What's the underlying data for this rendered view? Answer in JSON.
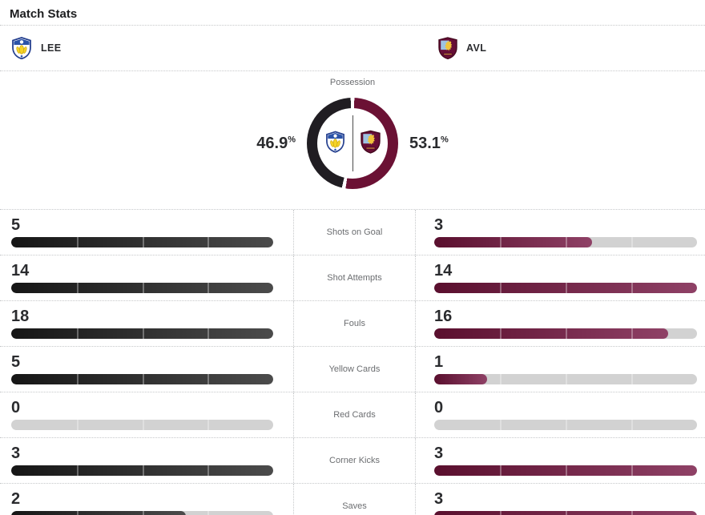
{
  "page": {
    "title": "Match Stats"
  },
  "teams": {
    "home": {
      "abbr": "LEE",
      "crest_icon": "leeds-united-crest",
      "accent_color": "#1f1c21"
    },
    "away": {
      "abbr": "AVL",
      "crest_icon": "aston-villa-crest",
      "accent_color": "#6b1134"
    }
  },
  "possession": {
    "label": "Possession",
    "home_pct": "46.9",
    "away_pct": "53.1",
    "pct_symbol": "%"
  },
  "colors": {
    "donut_home": "#201d22",
    "donut_away": "#6b1134",
    "home_bar_start": "#161616",
    "home_bar_end": "#4b4b4b",
    "away_bar_start": "#5a0f2e",
    "away_bar_end": "#8f4166",
    "bar_track": "#d2d2d2",
    "label_gray": "#6b6d70",
    "text_dark": "#2a2b2e"
  },
  "stats": {
    "rows": [
      {
        "label": "Shots on Goal",
        "home": "5",
        "away": "3"
      },
      {
        "label": "Shot Attempts",
        "home": "14",
        "away": "14"
      },
      {
        "label": "Fouls",
        "home": "18",
        "away": "16"
      },
      {
        "label": "Yellow Cards",
        "home": "5",
        "away": "1"
      },
      {
        "label": "Red Cards",
        "home": "0",
        "away": "0"
      },
      {
        "label": "Corner Kicks",
        "home": "3",
        "away": "3"
      },
      {
        "label": "Saves",
        "home": "2",
        "away": "3"
      }
    ]
  },
  "chart_data": [
    {
      "type": "pie",
      "title": "Possession",
      "labels": [
        "LEE",
        "AVL"
      ],
      "values": [
        46.9,
        53.1
      ],
      "unit": "%",
      "colors": [
        "#201d22",
        "#6b1134"
      ],
      "layout": "donut, LEE left half (black), AVL right half (claret), white gaps at 12 and ~6 o'clock, team crests and vertical divider in hole"
    },
    {
      "type": "bar",
      "title": "Match Stats",
      "categories": [
        "Shots on Goal",
        "Shot Attempts",
        "Fouls",
        "Yellow Cards",
        "Red Cards",
        "Corner Kicks",
        "Saves"
      ],
      "series": [
        {
          "name": "LEE",
          "values": [
            5,
            14,
            18,
            5,
            0,
            3,
            2
          ]
        },
        {
          "name": "AVL",
          "values": [
            3,
            14,
            16,
            1,
            0,
            3,
            3
          ]
        }
      ],
      "layout": "paired horizontal pill bars; fill fraction = value / max(home, away) per category; gray track when unfilled; segment dividers at 25/50/75%"
    }
  ]
}
